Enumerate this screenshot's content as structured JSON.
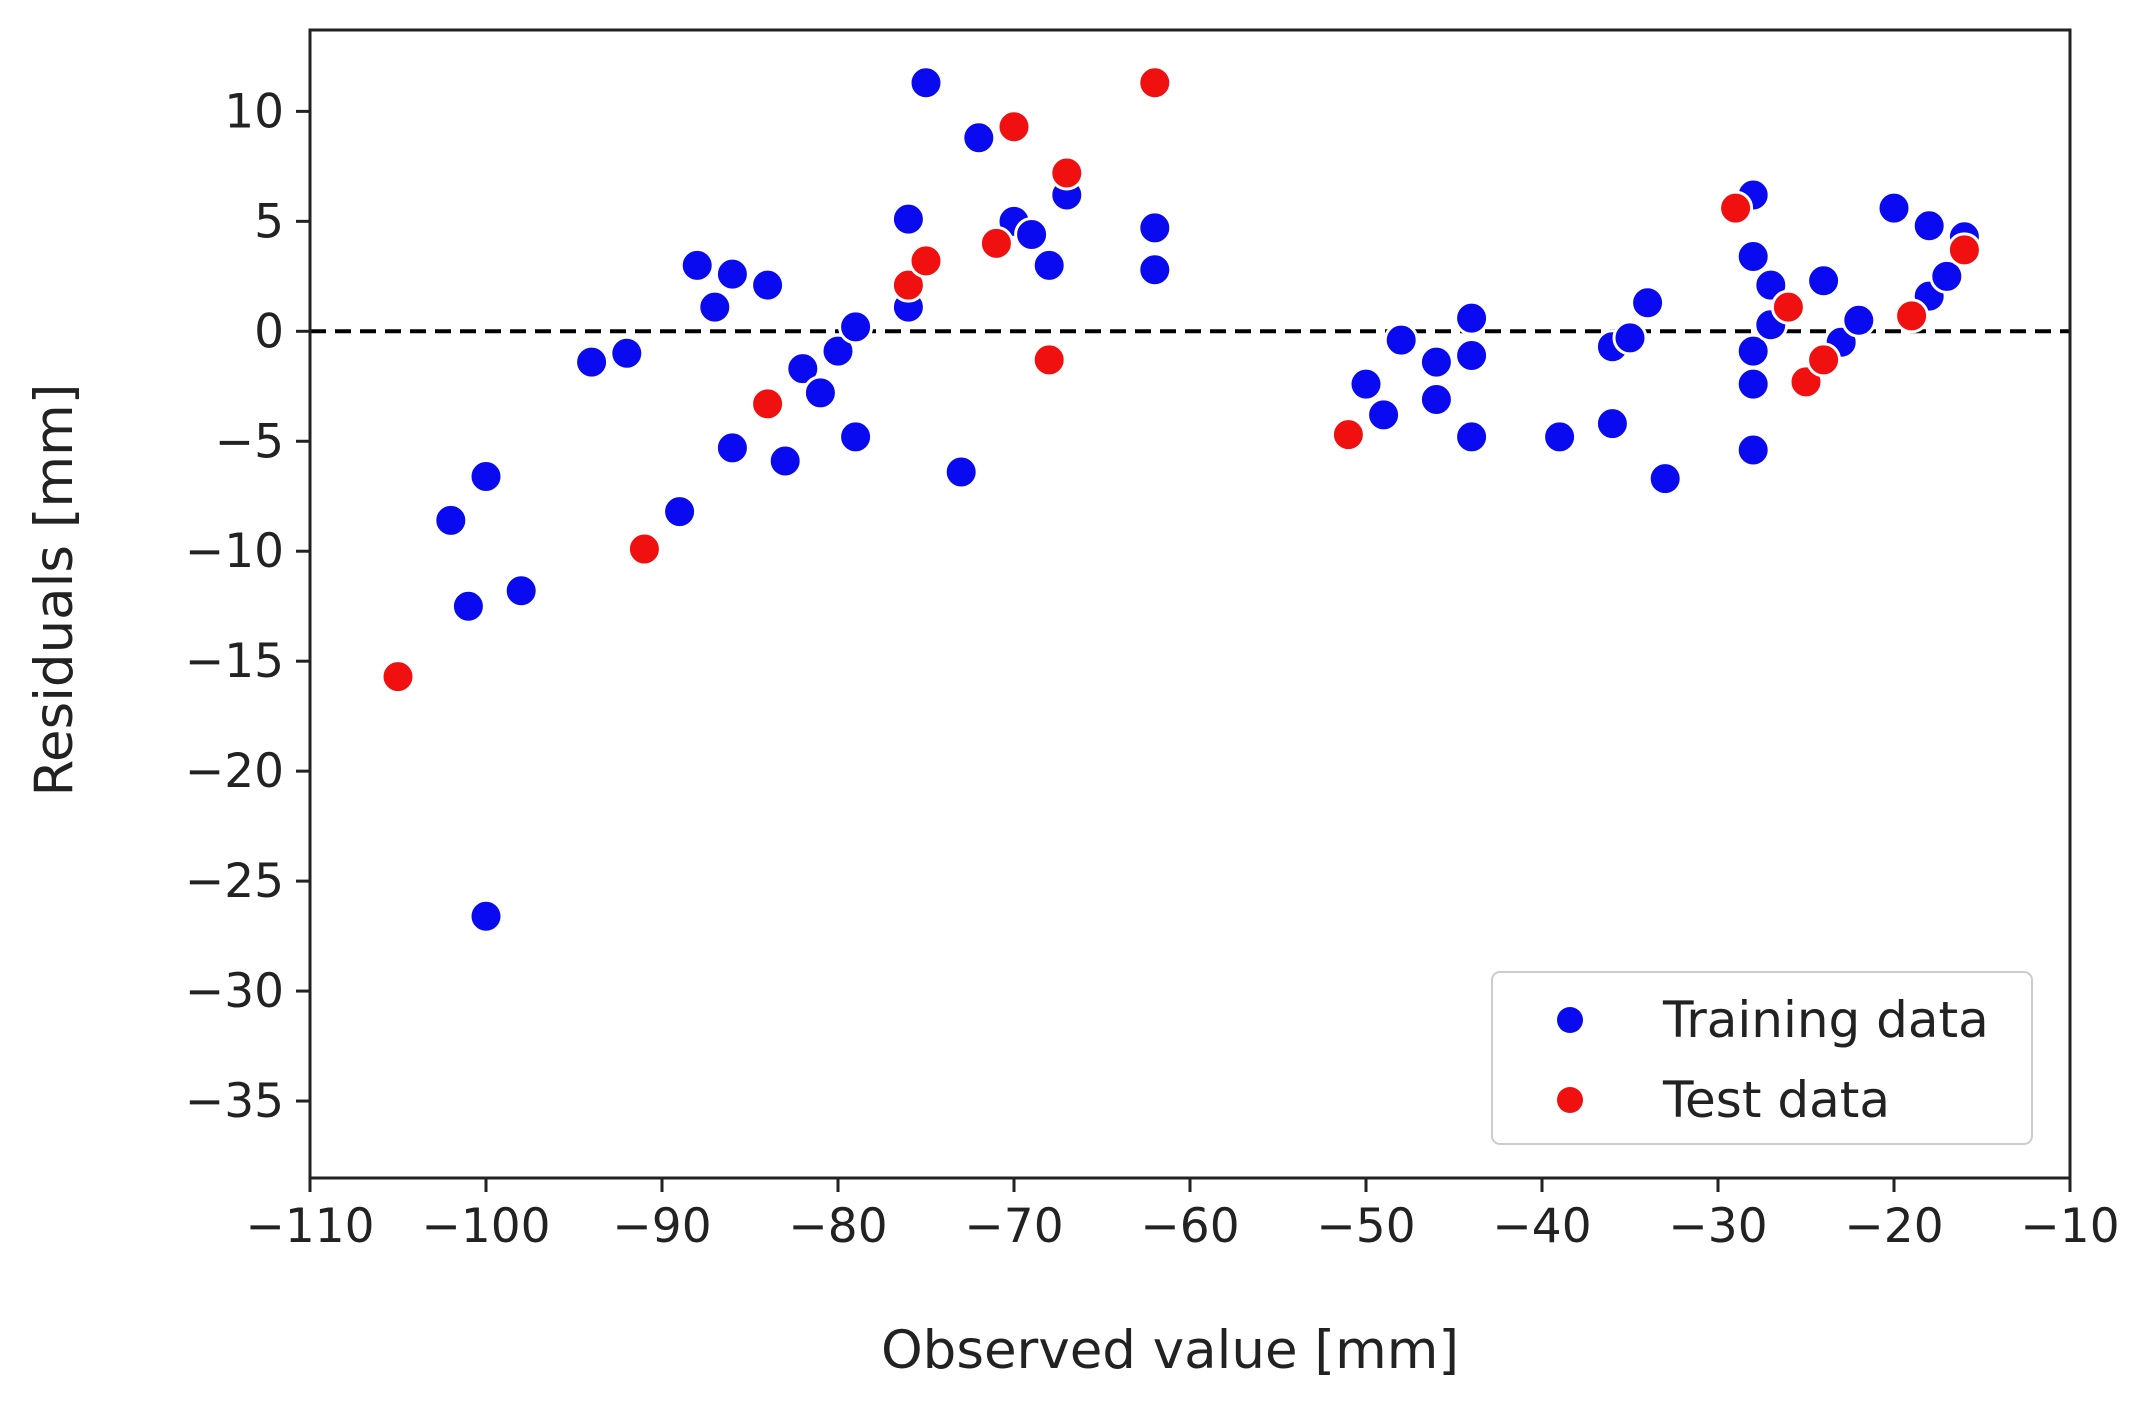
{
  "chart_data": {
    "type": "scatter",
    "title": "",
    "xlabel": "Observed value [mm]",
    "ylabel": "Residuals [mm]",
    "xlim": [
      -110,
      -10
    ],
    "ylim": [
      -38.5,
      13.7
    ],
    "xticks": [
      -110,
      -100,
      -90,
      -80,
      -70,
      -60,
      -50,
      -40,
      -30,
      -20,
      -10
    ],
    "yticks": [
      -35,
      -30,
      -25,
      -20,
      -15,
      -10,
      -5,
      0,
      5,
      10
    ],
    "xtick_labels": [
      "−110",
      "−100",
      "−90",
      "−80",
      "−70",
      "−60",
      "−50",
      "−40",
      "−30",
      "−20",
      "−10"
    ],
    "ytick_labels": [
      "−35",
      "−30",
      "−25",
      "−20",
      "−15",
      "−10",
      "−5",
      "0",
      "5",
      "10"
    ],
    "reference_line": {
      "y": 0,
      "style": "dashed",
      "color": "#000000"
    },
    "legend_position": "bottom-right",
    "series": [
      {
        "name": "Training data",
        "color": "#0a0af0",
        "points": [
          [
            -102,
            -8.6
          ],
          [
            -101,
            -12.5
          ],
          [
            -100,
            -6.6
          ],
          [
            -100,
            -26.6
          ],
          [
            -98,
            -11.8
          ],
          [
            -94,
            -1.4
          ],
          [
            -92,
            -1.0
          ],
          [
            -89,
            -8.2
          ],
          [
            -88,
            3.0
          ],
          [
            -87,
            1.1
          ],
          [
            -86,
            2.6
          ],
          [
            -86,
            -5.3
          ],
          [
            -84,
            2.1
          ],
          [
            -83,
            -5.9
          ],
          [
            -82,
            -1.7
          ],
          [
            -81,
            -2.8
          ],
          [
            -80,
            -0.9
          ],
          [
            -79,
            0.2
          ],
          [
            -79,
            -4.8
          ],
          [
            -76,
            5.1
          ],
          [
            -76,
            1.1
          ],
          [
            -75,
            11.3
          ],
          [
            -73,
            -6.4
          ],
          [
            -72,
            8.8
          ],
          [
            -70,
            5.0
          ],
          [
            -69,
            4.4
          ],
          [
            -68,
            3.0
          ],
          [
            -67,
            6.2
          ],
          [
            -62,
            4.7
          ],
          [
            -62,
            2.8
          ],
          [
            -50,
            -2.4
          ],
          [
            -49,
            -3.8
          ],
          [
            -48,
            -0.4
          ],
          [
            -46,
            -1.4
          ],
          [
            -46,
            -3.1
          ],
          [
            -44,
            0.6
          ],
          [
            -44,
            -1.1
          ],
          [
            -44,
            -4.8
          ],
          [
            -39,
            -4.8
          ],
          [
            -36,
            -0.7
          ],
          [
            -36,
            -4.2
          ],
          [
            -35,
            -0.3
          ],
          [
            -34,
            1.3
          ],
          [
            -33,
            -6.7
          ],
          [
            -28,
            6.2
          ],
          [
            -28,
            3.4
          ],
          [
            -28,
            -0.9
          ],
          [
            -28,
            -2.4
          ],
          [
            -28,
            -5.4
          ],
          [
            -27,
            2.1
          ],
          [
            -27,
            0.3
          ],
          [
            -24,
            2.3
          ],
          [
            -23,
            -0.5
          ],
          [
            -22,
            0.5
          ],
          [
            -20,
            5.6
          ],
          [
            -18,
            4.8
          ],
          [
            -18,
            1.6
          ],
          [
            -17,
            2.5
          ],
          [
            -16,
            4.3
          ]
        ]
      },
      {
        "name": "Test data",
        "color": "#f01010",
        "points": [
          [
            -105,
            -15.7
          ],
          [
            -91,
            -9.9
          ],
          [
            -84,
            -3.3
          ],
          [
            -76,
            2.1
          ],
          [
            -75,
            3.2
          ],
          [
            -71,
            4.0
          ],
          [
            -70,
            9.3
          ],
          [
            -68,
            -1.3
          ],
          [
            -67,
            7.2
          ],
          [
            -62,
            11.3
          ],
          [
            -51,
            -4.7
          ],
          [
            -29,
            5.6
          ],
          [
            -26,
            1.1
          ],
          [
            -25,
            -2.3
          ],
          [
            -24,
            -1.3
          ],
          [
            -19,
            0.7
          ],
          [
            -16,
            3.7
          ]
        ]
      }
    ]
  }
}
